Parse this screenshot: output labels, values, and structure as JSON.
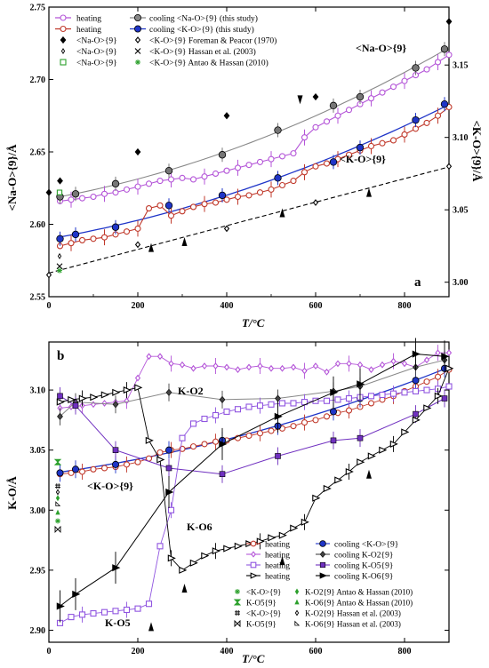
{
  "chart_data": [
    {
      "panel": "a",
      "type": "scatter",
      "xlabel": "T/°C",
      "ylabel_left": "<Na-O>{9}/Å",
      "ylabel_right": "<K-O>{9}/Å",
      "xlim": [
        0,
        900
      ],
      "ylim_left": [
        2.55,
        2.75
      ],
      "ylim_right": [
        2.99,
        3.19
      ],
      "x_ticks": [
        "0",
        "200",
        "400",
        "600",
        "800"
      ],
      "y_ticks_left": [
        "2.55",
        "2.60",
        "2.65",
        "2.70",
        "2.75"
      ],
      "y_ticks_right": [
        "3.00",
        "3.05",
        "3.10",
        "3.15"
      ],
      "annotations": [
        "<Na-O>{9}",
        "<K-O>{9}"
      ],
      "legend": [
        {
          "label": "heating",
          "marker": "open-circle",
          "color": "#b455d8"
        },
        {
          "label": "cooling  <Na-O>{9} (this study)",
          "marker": "filled-circle",
          "color": "#888888"
        },
        {
          "label": "heating",
          "marker": "open-circle",
          "color": "#c0392b"
        },
        {
          "label": "cooling  <K-O>{9} (this study)",
          "marker": "filled-circle",
          "color": "#1f35c8"
        },
        {
          "label": "<Na-O>{9}",
          "marker": "filled-diamond",
          "color": "#000000"
        },
        {
          "label": "<K-O>{9} Foreman & Peacor (1970)",
          "marker": "open-diamond",
          "color": "#000000"
        },
        {
          "label": "<Na-O>{9}",
          "marker": "small-open-diamond",
          "color": "#000000"
        },
        {
          "label": "<K-O>{9} Hassan et al. (2003)",
          "marker": "cross",
          "color": "#000000"
        },
        {
          "label": "<Na-O>{9}",
          "marker": "open-square",
          "color": "#2ca02c"
        },
        {
          "label": "<K-O>{9} Antao & Hassan (2010)",
          "marker": "asterisk",
          "color": "#2ca02c"
        }
      ],
      "series": [
        {
          "name": "heating <Na-O>{9}",
          "axis": "left",
          "color": "#b455d8",
          "x": [
            25,
            50,
            75,
            100,
            125,
            150,
            175,
            200,
            225,
            250,
            275,
            300,
            325,
            350,
            375,
            400,
            425,
            450,
            475,
            500,
            525,
            550,
            575,
            600,
            625,
            650,
            675,
            700,
            725,
            750,
            775,
            800,
            825,
            850,
            875,
            900
          ],
          "y": [
            2.616,
            2.617,
            2.618,
            2.619,
            2.621,
            2.622,
            2.624,
            2.626,
            2.628,
            2.63,
            2.631,
            2.632,
            2.631,
            2.633,
            2.635,
            2.637,
            2.639,
            2.641,
            2.643,
            2.645,
            2.647,
            2.649,
            2.66,
            2.667,
            2.671,
            2.675,
            2.679,
            2.683,
            2.687,
            2.691,
            2.695,
            2.699,
            2.703,
            2.707,
            2.712,
            2.717
          ]
        },
        {
          "name": "cooling <Na-O>{9}",
          "axis": "left",
          "color": "#777777",
          "x": [
            25,
            60,
            150,
            270,
            390,
            515,
            640,
            700,
            825,
            890
          ],
          "y": [
            2.619,
            2.621,
            2.628,
            2.637,
            2.648,
            2.665,
            2.682,
            2.688,
            2.708,
            2.721
          ]
        },
        {
          "name": "heating <K-O>{9}",
          "axis": "left",
          "color": "#c0392b",
          "x": [
            25,
            50,
            75,
            100,
            125,
            150,
            175,
            200,
            225,
            250,
            275,
            300,
            325,
            350,
            375,
            400,
            425,
            450,
            475,
            500,
            525,
            550,
            575,
            600,
            625,
            650,
            675,
            700,
            725,
            750,
            775,
            800,
            825,
            850,
            875,
            900
          ],
          "y": [
            2.585,
            2.587,
            2.589,
            2.59,
            2.591,
            2.593,
            2.595,
            2.597,
            2.611,
            2.613,
            2.606,
            2.609,
            2.612,
            2.614,
            2.615,
            2.617,
            2.619,
            2.62,
            2.622,
            2.624,
            2.627,
            2.63,
            2.636,
            2.64,
            2.642,
            2.645,
            2.648,
            2.651,
            2.654,
            2.656,
            2.658,
            2.662,
            2.666,
            2.67,
            2.675,
            2.681
          ]
        },
        {
          "name": "cooling <K-O>{9}",
          "axis": "left",
          "color": "#1f35c8",
          "x": [
            25,
            60,
            150,
            270,
            390,
            515,
            640,
            700,
            825,
            890
          ],
          "y": [
            2.59,
            2.593,
            2.598,
            2.613,
            2.62,
            2.632,
            2.643,
            2.653,
            2.672,
            2.683
          ]
        },
        {
          "name": "Foreman & Peacor (1970) <Na-O>{9}",
          "axis": "left",
          "color": "#000000",
          "x": [
            0,
            25,
            200,
            400,
            600,
            900
          ],
          "y": [
            2.622,
            2.63,
            2.65,
            2.675,
            2.688,
            2.74
          ]
        },
        {
          "name": "Foreman & Peacor (1970) <K-O>{9}",
          "axis": "right",
          "color": "#000000",
          "x": [
            0,
            200,
            400,
            600,
            900
          ],
          "y": [
            3.005,
            3.026,
            3.037,
            3.055,
            3.08
          ]
        }
      ],
      "marked_temperatures": [
        230,
        305,
        525,
        565,
        720
      ]
    },
    {
      "panel": "b",
      "type": "scatter",
      "xlabel": "T/°C",
      "ylabel": "K-O/Å",
      "xlim": [
        0,
        900
      ],
      "ylim": [
        2.89,
        3.14
      ],
      "x_ticks": [
        "0",
        "200",
        "400",
        "600",
        "800"
      ],
      "y_ticks": [
        "2.90",
        "2.95",
        "3.00",
        "3.05",
        "3.10"
      ],
      "annotations": [
        "K-O2",
        "<K-O>{9}",
        "K-O6",
        "K-O5"
      ],
      "legend": [
        {
          "label": "heating",
          "marker": "open-circle",
          "color": "#c0392b"
        },
        {
          "label": "cooling  <K-O>{9}",
          "marker": "filled-circle",
          "color": "#1f35c8"
        },
        {
          "label": "heating",
          "marker": "open-diamond",
          "color": "#b455d8"
        },
        {
          "label": "cooling  K-O2{9}",
          "marker": "filled-diamond",
          "color": "#444444"
        },
        {
          "label": "heating",
          "marker": "open-square",
          "color": "#9055e0"
        },
        {
          "label": "cooling  K-O5{9}",
          "marker": "filled-square",
          "color": "#7030c0"
        },
        {
          "label": "heating",
          "marker": "open-triangle",
          "color": "#000000"
        },
        {
          "label": "cooling  K-O6{9}",
          "marker": "filled-triangle",
          "color": "#000000"
        },
        {
          "label": "<K-O>{9}",
          "marker": "asterisk",
          "color": "#2ca02c"
        },
        {
          "label": "K-O2{9} Antao & Hassan (2010)",
          "marker": "small-diamond",
          "color": "#2ca02c"
        },
        {
          "label": "K-O5{9}",
          "marker": "hourglass",
          "color": "#2ca02c"
        },
        {
          "label": "K-O6{9} Antao & Hassan (2010)",
          "marker": "small-triangle",
          "color": "#2ca02c"
        },
        {
          "label": "<K-O>{9}",
          "marker": "hash",
          "color": "#000000"
        },
        {
          "label": "K-O2{9} Hassan et al. (2003)",
          "marker": "small-open-diamond",
          "color": "#000000"
        },
        {
          "label": "K-O5{9}",
          "marker": "bowtie",
          "color": "#000000"
        },
        {
          "label": "K-O6{9} Hassan et al. (2003)",
          "marker": "small-open-triangle",
          "color": "#000000"
        }
      ],
      "series": [
        {
          "name": "heating <K-O>{9}",
          "color": "#c0392b",
          "x": [
            25,
            50,
            75,
            100,
            125,
            150,
            175,
            200,
            225,
            250,
            275,
            300,
            325,
            350,
            375,
            400,
            425,
            450,
            475,
            500,
            525,
            550,
            575,
            600,
            625,
            650,
            675,
            700,
            725,
            750,
            775,
            800,
            825,
            850,
            875,
            900
          ],
          "y": [
            3.03,
            3.031,
            3.032,
            3.034,
            3.035,
            3.036,
            3.038,
            3.04,
            3.043,
            3.048,
            3.05,
            3.051,
            3.053,
            3.055,
            3.057,
            3.058,
            3.06,
            3.062,
            3.064,
            3.066,
            3.068,
            3.07,
            3.073,
            3.075,
            3.078,
            3.081,
            3.083,
            3.086,
            3.089,
            3.092,
            3.095,
            3.099,
            3.103,
            3.107,
            3.111,
            3.117
          ]
        },
        {
          "name": "cooling <K-O>{9}",
          "color": "#1f35c8",
          "x": [
            25,
            60,
            150,
            270,
            390,
            515,
            640,
            700,
            825,
            890
          ],
          "y": [
            3.031,
            3.034,
            3.038,
            3.05,
            3.058,
            3.07,
            3.082,
            3.093,
            3.108,
            3.118
          ]
        },
        {
          "name": "heating K-O2{9}",
          "color": "#b455d8",
          "x": [
            25,
            50,
            75,
            100,
            125,
            150,
            175,
            200,
            225,
            250,
            275,
            300,
            325,
            350,
            375,
            400,
            425,
            450,
            475,
            500,
            525,
            550,
            575,
            600,
            625,
            650,
            675,
            700,
            725,
            750,
            775,
            800,
            825,
            850,
            875,
            900
          ],
          "y": [
            3.085,
            3.086,
            3.087,
            3.088,
            3.089,
            3.09,
            3.091,
            3.11,
            3.128,
            3.128,
            3.122,
            3.121,
            3.118,
            3.12,
            3.12,
            3.119,
            3.117,
            3.119,
            3.12,
            3.118,
            3.118,
            3.119,
            3.116,
            3.12,
            3.115,
            3.122,
            3.122,
            3.121,
            3.117,
            3.121,
            3.124,
            3.122,
            3.119,
            3.125,
            3.131,
            3.131
          ]
        },
        {
          "name": "cooling K-O2{9}",
          "color": "#444444",
          "x": [
            25,
            60,
            150,
            270,
            390,
            515,
            640,
            700,
            825,
            890
          ],
          "y": [
            3.078,
            3.09,
            3.088,
            3.098,
            3.092,
            3.093,
            3.099,
            3.103,
            3.119,
            3.125
          ]
        },
        {
          "name": "heating K-O5{9}",
          "color": "#9055e0",
          "x": [
            25,
            50,
            75,
            100,
            125,
            150,
            175,
            200,
            225,
            250,
            275,
            300,
            325,
            350,
            375,
            400,
            425,
            450,
            475,
            500,
            525,
            550,
            575,
            600,
            625,
            650,
            675,
            700,
            725,
            750,
            775,
            800,
            825,
            850,
            875,
            900
          ],
          "y": [
            2.906,
            2.911,
            2.913,
            2.914,
            2.915,
            2.916,
            2.917,
            2.918,
            2.922,
            2.97,
            3.0,
            3.06,
            3.072,
            3.076,
            3.079,
            3.082,
            3.084,
            3.086,
            3.087,
            3.088,
            3.089,
            3.089,
            3.09,
            3.091,
            3.091,
            3.092,
            3.093,
            3.094,
            3.095,
            3.096,
            3.097,
            3.098,
            3.099,
            3.1,
            3.101,
            3.103
          ]
        },
        {
          "name": "cooling K-O5{9}",
          "color": "#7030c0",
          "x": [
            25,
            60,
            150,
            270,
            390,
            515,
            640,
            700,
            825,
            890
          ],
          "y": [
            3.095,
            3.087,
            3.05,
            3.035,
            3.03,
            3.045,
            3.058,
            3.06,
            3.08,
            3.093
          ]
        },
        {
          "name": "heating K-O6{9}",
          "color": "#000000",
          "x": [
            25,
            50,
            75,
            100,
            125,
            150,
            175,
            200,
            225,
            250,
            275,
            300,
            325,
            350,
            375,
            400,
            425,
            450,
            475,
            500,
            525,
            550,
            575,
            600,
            625,
            650,
            675,
            700,
            725,
            750,
            775,
            800,
            825,
            850,
            875,
            900
          ],
          "y": [
            3.09,
            3.092,
            3.093,
            3.094,
            3.096,
            3.098,
            3.1,
            3.102,
            3.058,
            3.042,
            2.96,
            2.95,
            2.956,
            2.962,
            2.966,
            2.968,
            2.97,
            2.972,
            2.974,
            2.977,
            2.979,
            2.985,
            2.99,
            3.01,
            3.018,
            3.025,
            3.032,
            3.04,
            3.045,
            3.05,
            3.055,
            3.065,
            3.075,
            3.085,
            3.095,
            3.118
          ]
        },
        {
          "name": "cooling K-O6{9}",
          "color": "#000000",
          "x": [
            25,
            60,
            150,
            270,
            390,
            515,
            640,
            700,
            825,
            890
          ],
          "y": [
            2.92,
            2.93,
            2.952,
            3.015,
            3.055,
            3.078,
            3.098,
            3.105,
            3.13,
            3.128
          ]
        }
      ],
      "marked_temperatures": [
        230,
        305,
        525,
        720
      ]
    }
  ]
}
